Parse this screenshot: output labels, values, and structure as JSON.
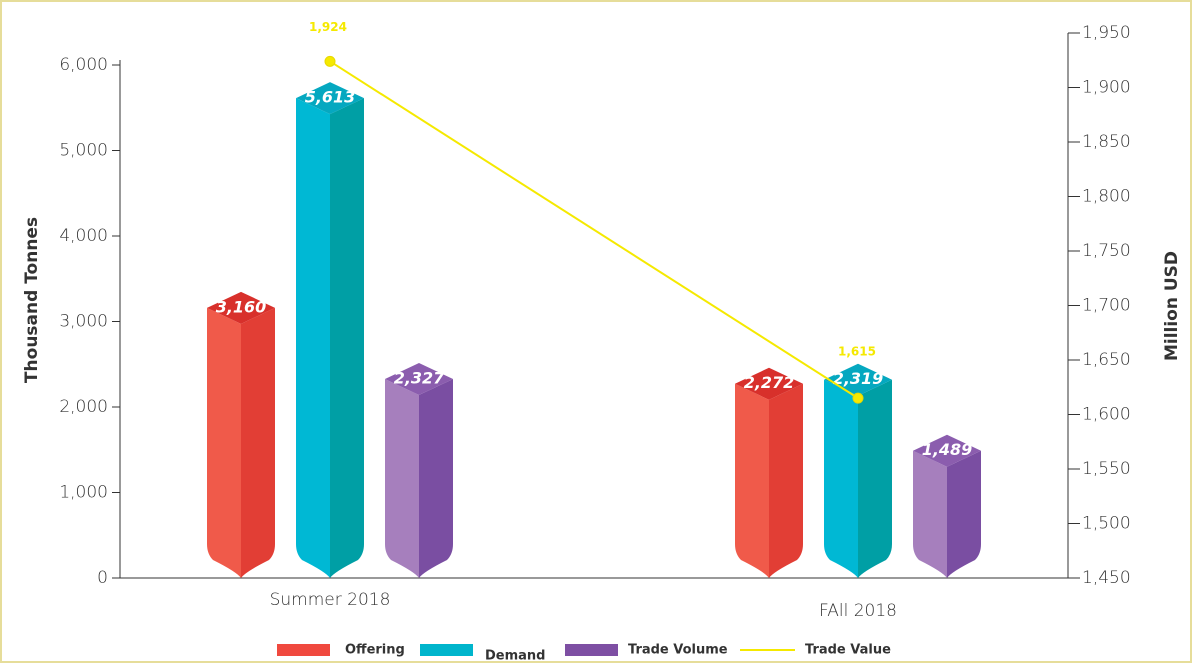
{
  "chart_data": {
    "type": "bar",
    "categories": [
      "Summer 2018",
      "FAll 2018"
    ],
    "series": [
      {
        "name": "Offering",
        "color": "#f0493e",
        "values": [
          3160,
          2272
        ],
        "value_labels": [
          "3,160",
          "2,272"
        ]
      },
      {
        "name": "Demand",
        "color": "#00b5cc",
        "values": [
          5613,
          2319
        ],
        "value_labels": [
          "5,613",
          "2,319"
        ]
      },
      {
        "name": "Trade Volume",
        "color": "#7e4fa3",
        "values": [
          2327,
          1489
        ],
        "value_labels": [
          "2,327",
          "1,489"
        ]
      },
      {
        "name": "Trade Value",
        "type": "line",
        "axis": "y2",
        "color": "#f5e900",
        "values": [
          1924,
          1615
        ],
        "value_labels": [
          "1,924",
          "1,615"
        ]
      }
    ],
    "ylabel": "Thousand Tonnes",
    "y2label": "Million USD",
    "ylim": [
      0,
      6000
    ],
    "yticks": [
      0,
      {
        "value": 1000,
        "label": "1,000"
      },
      {
        "value": 2000,
        "label": "2,000"
      },
      {
        "value": 3000,
        "label": "3,000"
      },
      {
        "value": 4000,
        "label": "4,000"
      },
      {
        "value": 5000,
        "label": "5,000"
      },
      {
        "value": 6000,
        "label": "6,000"
      }
    ],
    "y2lim": [
      1450,
      1950
    ],
    "y2ticks": [
      {
        "value": 1450,
        "label": "1,450"
      },
      {
        "value": 1500,
        "label": "1,500"
      },
      {
        "value": 1550,
        "label": "1,550"
      },
      {
        "value": 1600,
        "label": "1,600"
      },
      {
        "value": 1650,
        "label": "1,650"
      },
      {
        "value": 1700,
        "label": "1,700"
      },
      {
        "value": 1750,
        "label": "1,750"
      },
      {
        "value": 1800,
        "label": "1,800"
      },
      {
        "value": 1850,
        "label": "1,850"
      },
      {
        "value": 1900,
        "label": "1,900"
      },
      {
        "value": 1950,
        "label": "1,950"
      }
    ],
    "legend": "bottom"
  }
}
